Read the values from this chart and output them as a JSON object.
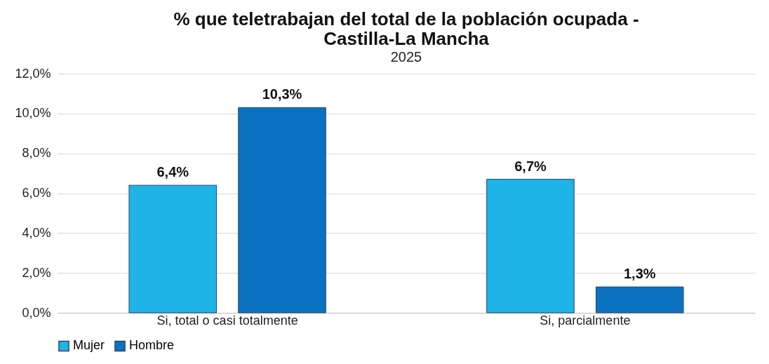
{
  "chart_data": {
    "type": "bar",
    "title": "% que teletrabajan del total de la población ocupada - Castilla-La Mancha",
    "subtitle": "2025",
    "categories": [
      "Si, total o casi totalmente",
      "Si, parcialmente"
    ],
    "series": [
      {
        "name": "Mujer",
        "color": "#1fb4e8",
        "values": [
          6.4,
          6.7
        ],
        "value_labels": [
          "6,4%",
          "6,7%"
        ]
      },
      {
        "name": "Hombre",
        "color": "#0a72c0",
        "values": [
          10.3,
          1.3
        ],
        "value_labels": [
          "10,3%",
          "1,3%"
        ]
      }
    ],
    "ylim": [
      0,
      12
    ],
    "yticks": [
      {
        "value": 0,
        "label": "0,0%"
      },
      {
        "value": 2,
        "label": "2,0%"
      },
      {
        "value": 4,
        "label": "4,0%"
      },
      {
        "value": 6,
        "label": "6,0%"
      },
      {
        "value": 8,
        "label": "8,0%"
      },
      {
        "value": 10,
        "label": "10,0%"
      },
      {
        "value": 12,
        "label": "12,0%"
      }
    ],
    "grid": "y",
    "legend": "bottom"
  }
}
